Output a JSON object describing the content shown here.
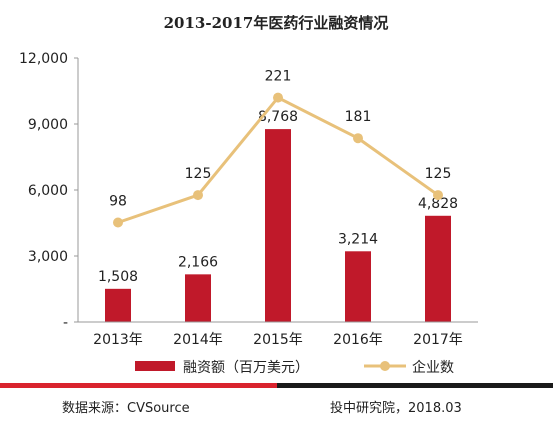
{
  "chart_data": {
    "type": "bar+line",
    "title": "2013-2017年医药行业融资情况",
    "categories": [
      "2013年",
      "2014年",
      "2015年",
      "2016年",
      "2017年"
    ],
    "series": [
      {
        "name": "融资额（百万美元）",
        "kind": "bar",
        "values": [
          1508,
          2166,
          8768,
          3214,
          4828
        ],
        "labels": [
          "1,508",
          "2,166",
          "8,768",
          "3,214",
          "4,828"
        ],
        "color": "#C0192A"
      },
      {
        "name": "企业数",
        "kind": "line",
        "values": [
          98,
          125,
          221,
          181,
          125
        ],
        "labels": [
          "98",
          "125",
          "221",
          "181",
          "125"
        ],
        "color": "#E8C17A"
      }
    ],
    "y_axis": {
      "ticks": [
        0,
        3000,
        6000,
        9000,
        12000
      ],
      "tick_labels": [
        "-",
        "3,000",
        "6,000",
        "9,000",
        "12,000"
      ],
      "range": [
        0,
        12000
      ]
    },
    "line_axis_range": [
      0,
      260
    ],
    "grid": false,
    "legend_position": "bottom"
  },
  "footer": {
    "source": "数据来源：CVSource",
    "credit": "投中研究院，2018.03",
    "bar_colors": [
      "#D9232E",
      "#1A1A1A"
    ]
  }
}
